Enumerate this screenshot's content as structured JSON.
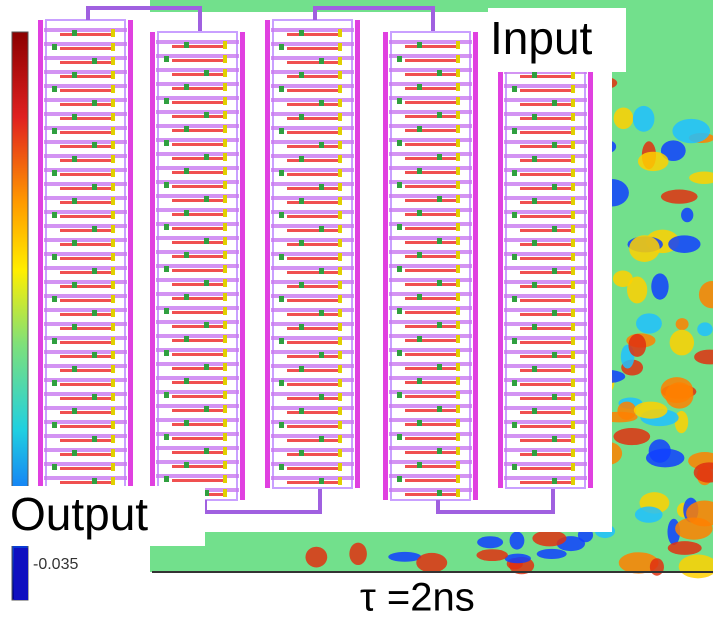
{
  "labels": {
    "input": "Input",
    "output": "Output",
    "colorbar_min": "-0.035",
    "caption": "τ =2ns"
  }
}
